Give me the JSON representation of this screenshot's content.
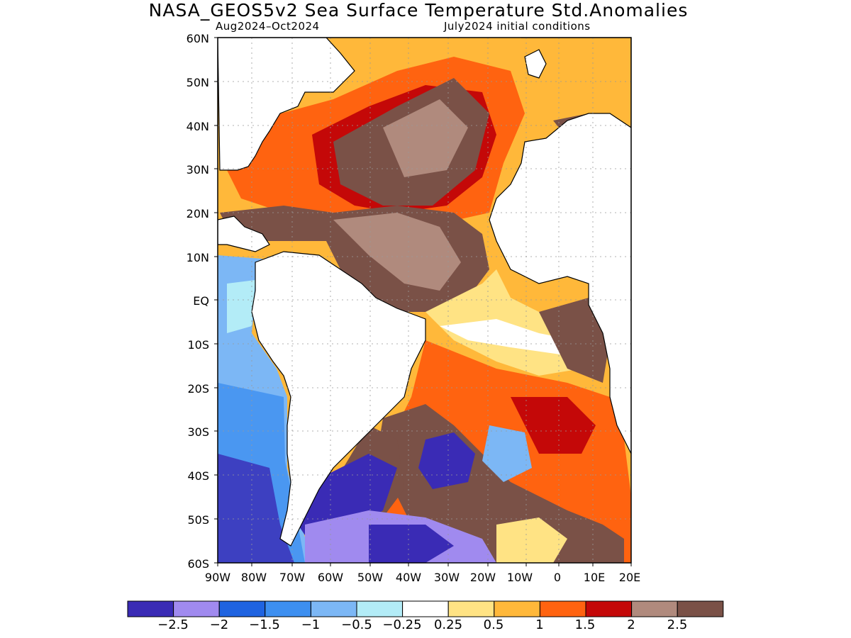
{
  "title": "NASA_GEOS5v2 Sea Surface Temperature Std.Anomalies",
  "subtitle_left": "Aug2024–Oct2024",
  "subtitle_right": "July2024 initial conditions",
  "lat_labels": [
    "60N",
    "50N",
    "40N",
    "30N",
    "20N",
    "10N",
    "EQ",
    "10S",
    "20S",
    "30S",
    "40S",
    "50S",
    "60S"
  ],
  "lon_labels": [
    "90W",
    "80W",
    "70W",
    "60W",
    "50W",
    "40W",
    "30W",
    "20W",
    "10W",
    "0",
    "10E",
    "20E"
  ],
  "colorbar": {
    "colors": [
      "#3a2bb5",
      "#a08aef",
      "#1f63e0",
      "#3d8ff0",
      "#7cb7f5",
      "#b3ecf7",
      "#ffffff",
      "#ffe384",
      "#ffb83a",
      "#ff6310",
      "#c40808",
      "#b08a7d",
      "#7a5147"
    ],
    "labels": [
      "−2.5",
      "−2",
      "−1.5",
      "−1",
      "−0.5",
      "−0.25",
      "0.25",
      "0.5",
      "1",
      "1.5",
      "2",
      "2.5"
    ]
  }
}
